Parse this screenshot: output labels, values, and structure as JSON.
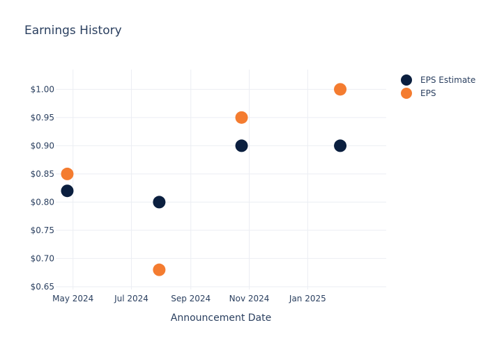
{
  "chart_data": {
    "type": "scatter",
    "title": "Earnings History",
    "xlabel": "Announcement Date",
    "ylabel": "",
    "x_tick_labels": [
      "May 2024",
      "Jul 2024",
      "Sep 2024",
      "Nov 2024",
      "Jan 2025"
    ],
    "x_tick_dates": [
      "2024-05-01",
      "2024-07-01",
      "2024-09-01",
      "2024-11-01",
      "2025-01-01"
    ],
    "xlim": [
      "2024-04-13",
      "2025-03-24"
    ],
    "y_tick_labels": [
      "$1.00",
      "$0.95",
      "$0.90",
      "$0.85",
      "$0.80",
      "$0.75",
      "$0.70",
      "$0.65"
    ],
    "y_tick_values": [
      1.0,
      0.95,
      0.9,
      0.85,
      0.8,
      0.75,
      0.7,
      0.65
    ],
    "ylim": [
      0.645,
      1.035
    ],
    "grid": true,
    "legend_position": "top-right",
    "series": [
      {
        "name": "EPS Estimate",
        "color": "#0b1f3f",
        "points": [
          {
            "x": "2024-04-25",
            "y": 0.82
          },
          {
            "x": "2024-07-30",
            "y": 0.8
          },
          {
            "x": "2024-10-24",
            "y": 0.9
          },
          {
            "x": "2025-02-04",
            "y": 0.9
          }
        ]
      },
      {
        "name": "EPS",
        "color": "#f47c30",
        "points": [
          {
            "x": "2024-04-25",
            "y": 0.85
          },
          {
            "x": "2024-07-30",
            "y": 0.68
          },
          {
            "x": "2024-10-24",
            "y": 0.95
          },
          {
            "x": "2025-02-04",
            "y": 1.0
          }
        ]
      }
    ]
  }
}
